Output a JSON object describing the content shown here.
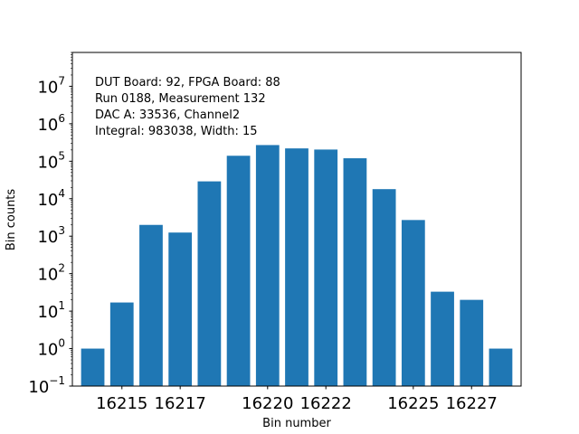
{
  "chart_data": {
    "type": "bar",
    "xlabel": "Bin number",
    "ylabel": "Bin counts",
    "yscale": "log",
    "ylim": [
      0.1,
      80000000
    ],
    "xlim": [
      16213.3,
      16228.7
    ],
    "grid": false,
    "bar_color": "#1f77b4",
    "x": [
      16214,
      16215,
      16216,
      16217,
      16218,
      16219,
      16220,
      16221,
      16222,
      16223,
      16224,
      16225,
      16226,
      16227,
      16228
    ],
    "values": [
      1,
      17,
      2000,
      1250,
      29000,
      140000,
      270000,
      220000,
      205000,
      120000,
      18000,
      2700,
      33,
      20,
      1
    ],
    "xticks": [
      16215,
      16217,
      16220,
      16222,
      16225,
      16227
    ],
    "xtick_labels": [
      "16215",
      "16217",
      "16220",
      "16222",
      "16225",
      "16227"
    ],
    "yticks": [
      {
        "exp": -1,
        "base": "10",
        "exp_label": "−1"
      },
      {
        "exp": 0,
        "base": "10",
        "exp_label": "0"
      },
      {
        "exp": 1,
        "base": "10",
        "exp_label": "1"
      },
      {
        "exp": 2,
        "base": "10",
        "exp_label": "2"
      },
      {
        "exp": 3,
        "base": "10",
        "exp_label": "3"
      },
      {
        "exp": 4,
        "base": "10",
        "exp_label": "4"
      },
      {
        "exp": 5,
        "base": "10",
        "exp_label": "5"
      },
      {
        "exp": 6,
        "base": "10",
        "exp_label": "6"
      },
      {
        "exp": 7,
        "base": "10",
        "exp_label": "7"
      }
    ],
    "annotations": [
      "DUT Board: 92, FPGA Board: 88",
      "Run 0188, Measurement 132",
      "DAC A: 33536, Channel2",
      "Integral: 983038, Width: 15"
    ]
  }
}
